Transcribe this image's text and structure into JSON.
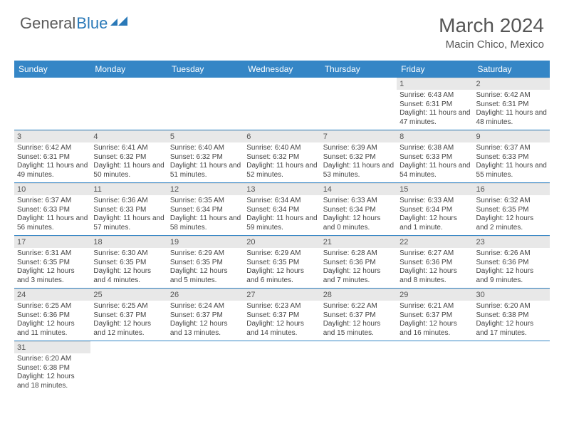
{
  "logo": {
    "text1": "General",
    "text2": "Blue"
  },
  "title": "March 2024",
  "location": "Macin Chico, Mexico",
  "colors": {
    "header_bg": "#3586c6",
    "header_text": "#ffffff",
    "daynum_bg": "#e8e8e8",
    "text": "#444444",
    "title_text": "#555555",
    "row_border": "#3586c6"
  },
  "fonts": {
    "title_size": 28,
    "location_size": 15,
    "dayheader_size": 12,
    "cell_size": 10
  },
  "day_names": [
    "Sunday",
    "Monday",
    "Tuesday",
    "Wednesday",
    "Thursday",
    "Friday",
    "Saturday"
  ],
  "weeks": [
    [
      null,
      null,
      null,
      null,
      null,
      {
        "n": "1",
        "sunrise": "Sunrise: 6:43 AM",
        "sunset": "Sunset: 6:31 PM",
        "daylight": "Daylight: 11 hours and 47 minutes."
      },
      {
        "n": "2",
        "sunrise": "Sunrise: 6:42 AM",
        "sunset": "Sunset: 6:31 PM",
        "daylight": "Daylight: 11 hours and 48 minutes."
      }
    ],
    [
      {
        "n": "3",
        "sunrise": "Sunrise: 6:42 AM",
        "sunset": "Sunset: 6:31 PM",
        "daylight": "Daylight: 11 hours and 49 minutes."
      },
      {
        "n": "4",
        "sunrise": "Sunrise: 6:41 AM",
        "sunset": "Sunset: 6:32 PM",
        "daylight": "Daylight: 11 hours and 50 minutes."
      },
      {
        "n": "5",
        "sunrise": "Sunrise: 6:40 AM",
        "sunset": "Sunset: 6:32 PM",
        "daylight": "Daylight: 11 hours and 51 minutes."
      },
      {
        "n": "6",
        "sunrise": "Sunrise: 6:40 AM",
        "sunset": "Sunset: 6:32 PM",
        "daylight": "Daylight: 11 hours and 52 minutes."
      },
      {
        "n": "7",
        "sunrise": "Sunrise: 6:39 AM",
        "sunset": "Sunset: 6:32 PM",
        "daylight": "Daylight: 11 hours and 53 minutes."
      },
      {
        "n": "8",
        "sunrise": "Sunrise: 6:38 AM",
        "sunset": "Sunset: 6:33 PM",
        "daylight": "Daylight: 11 hours and 54 minutes."
      },
      {
        "n": "9",
        "sunrise": "Sunrise: 6:37 AM",
        "sunset": "Sunset: 6:33 PM",
        "daylight": "Daylight: 11 hours and 55 minutes."
      }
    ],
    [
      {
        "n": "10",
        "sunrise": "Sunrise: 6:37 AM",
        "sunset": "Sunset: 6:33 PM",
        "daylight": "Daylight: 11 hours and 56 minutes."
      },
      {
        "n": "11",
        "sunrise": "Sunrise: 6:36 AM",
        "sunset": "Sunset: 6:33 PM",
        "daylight": "Daylight: 11 hours and 57 minutes."
      },
      {
        "n": "12",
        "sunrise": "Sunrise: 6:35 AM",
        "sunset": "Sunset: 6:34 PM",
        "daylight": "Daylight: 11 hours and 58 minutes."
      },
      {
        "n": "13",
        "sunrise": "Sunrise: 6:34 AM",
        "sunset": "Sunset: 6:34 PM",
        "daylight": "Daylight: 11 hours and 59 minutes."
      },
      {
        "n": "14",
        "sunrise": "Sunrise: 6:33 AM",
        "sunset": "Sunset: 6:34 PM",
        "daylight": "Daylight: 12 hours and 0 minutes."
      },
      {
        "n": "15",
        "sunrise": "Sunrise: 6:33 AM",
        "sunset": "Sunset: 6:34 PM",
        "daylight": "Daylight: 12 hours and 1 minute."
      },
      {
        "n": "16",
        "sunrise": "Sunrise: 6:32 AM",
        "sunset": "Sunset: 6:35 PM",
        "daylight": "Daylight: 12 hours and 2 minutes."
      }
    ],
    [
      {
        "n": "17",
        "sunrise": "Sunrise: 6:31 AM",
        "sunset": "Sunset: 6:35 PM",
        "daylight": "Daylight: 12 hours and 3 minutes."
      },
      {
        "n": "18",
        "sunrise": "Sunrise: 6:30 AM",
        "sunset": "Sunset: 6:35 PM",
        "daylight": "Daylight: 12 hours and 4 minutes."
      },
      {
        "n": "19",
        "sunrise": "Sunrise: 6:29 AM",
        "sunset": "Sunset: 6:35 PM",
        "daylight": "Daylight: 12 hours and 5 minutes."
      },
      {
        "n": "20",
        "sunrise": "Sunrise: 6:29 AM",
        "sunset": "Sunset: 6:35 PM",
        "daylight": "Daylight: 12 hours and 6 minutes."
      },
      {
        "n": "21",
        "sunrise": "Sunrise: 6:28 AM",
        "sunset": "Sunset: 6:36 PM",
        "daylight": "Daylight: 12 hours and 7 minutes."
      },
      {
        "n": "22",
        "sunrise": "Sunrise: 6:27 AM",
        "sunset": "Sunset: 6:36 PM",
        "daylight": "Daylight: 12 hours and 8 minutes."
      },
      {
        "n": "23",
        "sunrise": "Sunrise: 6:26 AM",
        "sunset": "Sunset: 6:36 PM",
        "daylight": "Daylight: 12 hours and 9 minutes."
      }
    ],
    [
      {
        "n": "24",
        "sunrise": "Sunrise: 6:25 AM",
        "sunset": "Sunset: 6:36 PM",
        "daylight": "Daylight: 12 hours and 11 minutes."
      },
      {
        "n": "25",
        "sunrise": "Sunrise: 6:25 AM",
        "sunset": "Sunset: 6:37 PM",
        "daylight": "Daylight: 12 hours and 12 minutes."
      },
      {
        "n": "26",
        "sunrise": "Sunrise: 6:24 AM",
        "sunset": "Sunset: 6:37 PM",
        "daylight": "Daylight: 12 hours and 13 minutes."
      },
      {
        "n": "27",
        "sunrise": "Sunrise: 6:23 AM",
        "sunset": "Sunset: 6:37 PM",
        "daylight": "Daylight: 12 hours and 14 minutes."
      },
      {
        "n": "28",
        "sunrise": "Sunrise: 6:22 AM",
        "sunset": "Sunset: 6:37 PM",
        "daylight": "Daylight: 12 hours and 15 minutes."
      },
      {
        "n": "29",
        "sunrise": "Sunrise: 6:21 AM",
        "sunset": "Sunset: 6:37 PM",
        "daylight": "Daylight: 12 hours and 16 minutes."
      },
      {
        "n": "30",
        "sunrise": "Sunrise: 6:20 AM",
        "sunset": "Sunset: 6:38 PM",
        "daylight": "Daylight: 12 hours and 17 minutes."
      }
    ],
    [
      {
        "n": "31",
        "sunrise": "Sunrise: 6:20 AM",
        "sunset": "Sunset: 6:38 PM",
        "daylight": "Daylight: 12 hours and 18 minutes."
      },
      null,
      null,
      null,
      null,
      null,
      null
    ]
  ]
}
